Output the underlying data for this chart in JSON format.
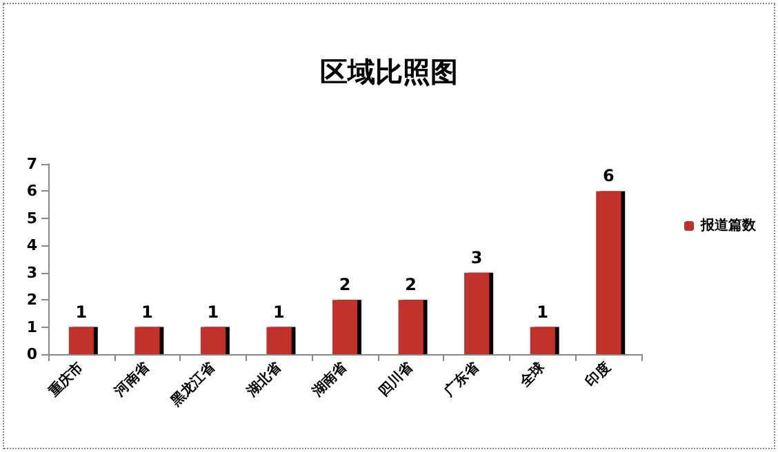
{
  "chart_data": {
    "type": "bar",
    "title": "区域比照图",
    "categories": [
      "重庆市",
      "河南省",
      "黑龙江省",
      "湖北省",
      "湖南省",
      "四川省",
      "广东省",
      "全球",
      "印度"
    ],
    "series": [
      {
        "name": "报道篇数",
        "color": "#c0302c",
        "values": [
          1,
          1,
          1,
          1,
          2,
          2,
          3,
          1,
          6
        ]
      }
    ],
    "ylim": [
      0,
      7
    ],
    "yticks": [
      0,
      1,
      2,
      3,
      4,
      5,
      6,
      7
    ],
    "grid": false,
    "legend": "right",
    "data_labels": true
  }
}
